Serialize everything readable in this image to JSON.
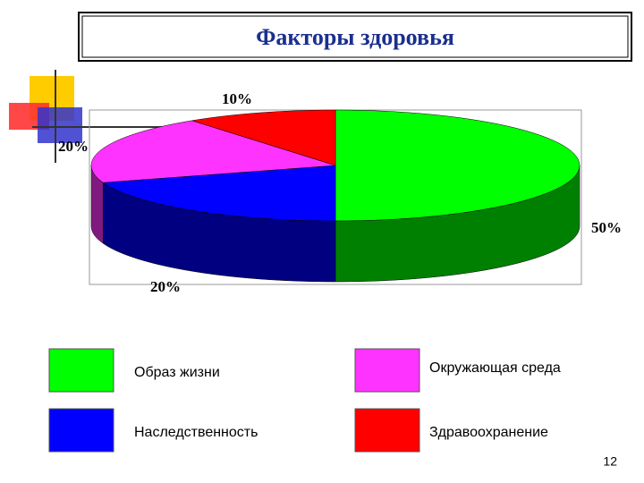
{
  "chart_data": {
    "type": "pie3d",
    "title": "Факторы здоровья",
    "categories": [
      "Образ жизни",
      "Наследственность",
      "Окружающая среда",
      "Здравоохранение"
    ],
    "values": [
      50,
      20,
      20,
      10
    ],
    "value_labels": [
      "50%",
      "20%",
      "20%",
      "10%"
    ],
    "colors": [
      "#00ff00",
      "#0000ff",
      "#ff33ff",
      "#ff0000"
    ],
    "legend": "bottom"
  },
  "page_number": "12"
}
